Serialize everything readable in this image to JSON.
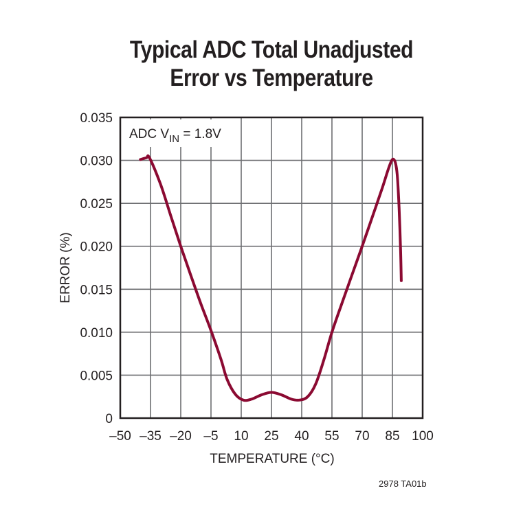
{
  "chart_data": {
    "type": "line",
    "title": "Typical ADC Total Unadjusted Error vs Temperature",
    "title_lines": [
      "Typical ADC Total Unadjusted",
      "Error vs Temperature"
    ],
    "xlabel": "TEMPERATURE (°C)",
    "ylabel": "ERROR (%)",
    "xlim": [
      -50,
      100
    ],
    "ylim": [
      0,
      0.035
    ],
    "x_ticks": [
      -50,
      -35,
      -20,
      -5,
      10,
      25,
      40,
      55,
      70,
      85,
      100
    ],
    "x_tick_labels": [
      "–50",
      "–35",
      "–20",
      "–5",
      "10",
      "25",
      "40",
      "55",
      "70",
      "85",
      "100"
    ],
    "y_ticks": [
      0,
      0.005,
      0.01,
      0.015,
      0.02,
      0.025,
      0.03,
      0.035
    ],
    "y_tick_labels": [
      "0",
      "0.005",
      "0.010",
      "0.015",
      "0.020",
      "0.025",
      "0.030",
      "0.035"
    ],
    "grid": true,
    "legend": null,
    "annotation": {
      "prefix": "ADC V",
      "subscript": "IN",
      "suffix": " = 1.8V"
    },
    "series": [
      {
        "name": "ADC VIN = 1.8V",
        "color": "#8b0a32",
        "x": [
          -40,
          -37,
          -35.5,
          -30,
          -25,
          -20,
          -15,
          -10,
          -5,
          0,
          3,
          7,
          11,
          15,
          20,
          25,
          30,
          35,
          39,
          43,
          47,
          51,
          55,
          60,
          65,
          70,
          75,
          80,
          83,
          85,
          86.5,
          87.5,
          88.3,
          89,
          89.4
        ],
        "values": [
          0.0301,
          0.0303,
          0.0303,
          0.0272,
          0.0236,
          0.02,
          0.0166,
          0.0133,
          0.0102,
          0.0068,
          0.0045,
          0.0028,
          0.0021,
          0.0022,
          0.0027,
          0.003,
          0.0027,
          0.0022,
          0.0021,
          0.0025,
          0.004,
          0.0068,
          0.01,
          0.0134,
          0.0167,
          0.02,
          0.0234,
          0.0268,
          0.029,
          0.0301,
          0.0297,
          0.028,
          0.0245,
          0.02,
          0.016
        ]
      }
    ]
  },
  "figure_code": "2978 TA01b"
}
